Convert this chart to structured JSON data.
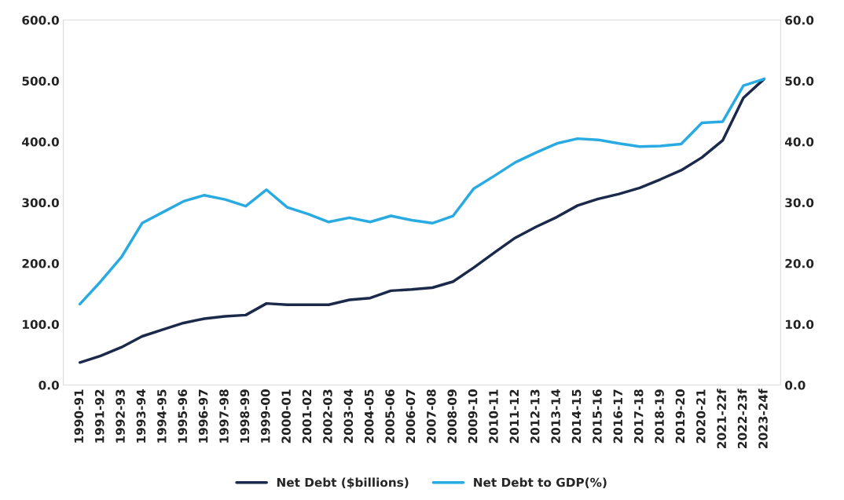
{
  "chart_data": {
    "type": "line",
    "categories": [
      "1990-91",
      "1991-92",
      "1992-93",
      "1993-94",
      "1994-95",
      "1995-96",
      "1996-97",
      "1997-98",
      "1998-99",
      "1999-00",
      "2000-01",
      "2001-02",
      "2002-03",
      "2003-04",
      "2004-05",
      "2005-06",
      "2006-07",
      "2007-08",
      "2008-09",
      "2009-10",
      "2010-11",
      "2011-12",
      "2012-13",
      "2013-14",
      "2014-15",
      "2015-16",
      "2016-17",
      "2017-18",
      "2018-19",
      "2019-20",
      "2020-21",
      "2021-22f",
      "2022-23f",
      "2023-24f"
    ],
    "series": [
      {
        "name": "Net Debt ($billions)",
        "color": "#1b2a4a",
        "values": [
          37,
          48,
          62,
          80,
          91,
          102,
          109,
          113,
          115,
          134,
          132,
          132,
          132,
          140,
          143,
          155,
          157,
          160,
          170,
          193,
          218,
          242,
          260,
          276,
          295,
          306,
          314,
          324,
          338,
          353,
          374,
          402,
          472,
          503
        ]
      },
      {
        "name": "Net Debt to GDP(%)",
        "color": "#29abe2",
        "axis": "y2",
        "values": [
          13.3,
          17,
          21,
          26.6,
          28.4,
          30.2,
          31.2,
          30.5,
          29.4,
          32.1,
          29.2,
          28.1,
          26.8,
          27.5,
          26.8,
          27.8,
          27.1,
          26.6,
          27.8,
          32.3,
          34.4,
          36.6,
          38.2,
          39.7,
          40.5,
          40.3,
          39.7,
          39.2,
          39.3,
          39.6,
          43.1,
          43.3,
          49.2,
          50.3
        ]
      }
    ],
    "ylim": [
      0,
      600
    ],
    "yticks": [
      {
        "value": 0,
        "label": "0.0"
      },
      {
        "value": 100,
        "label": "100.0"
      },
      {
        "value": 200,
        "label": "200.0"
      },
      {
        "value": 300,
        "label": "300.0"
      },
      {
        "value": 400,
        "label": "400.0"
      },
      {
        "value": 500,
        "label": "500.0"
      },
      {
        "value": 600,
        "label": "600.0"
      }
    ],
    "y2lim": [
      0,
      60
    ],
    "y2ticks": [
      {
        "value": 0,
        "label": "0.0"
      },
      {
        "value": 10,
        "label": "10.0"
      },
      {
        "value": 20,
        "label": "20.0"
      },
      {
        "value": 30,
        "label": "30.0"
      },
      {
        "value": 40,
        "label": "40.0"
      },
      {
        "value": 50,
        "label": "50.0"
      },
      {
        "value": 60,
        "label": "60.0"
      }
    ],
    "grid": false,
    "legend": "bottom",
    "marker": "none",
    "line_style": "solid"
  }
}
